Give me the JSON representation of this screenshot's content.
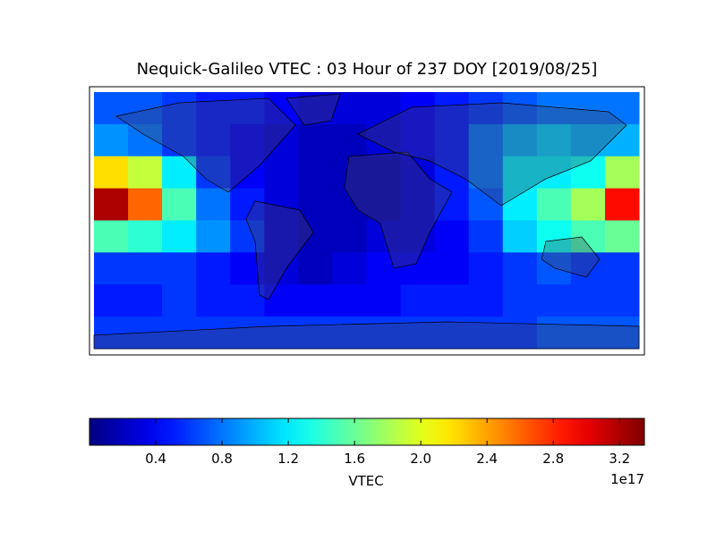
{
  "chart_data": {
    "type": "heatmap",
    "title": "Nequick-Galileo VTEC : 03 Hour of 237 DOY [2019/08/25]",
    "z": [
      [
        0.7,
        0.7,
        0.6,
        0.5,
        0.5,
        0.4,
        0.3,
        0.3,
        0.3,
        0.4,
        0.5,
        0.6,
        0.7,
        0.8,
        0.8,
        0.8
      ],
      [
        0.9,
        0.8,
        0.6,
        0.5,
        0.4,
        0.3,
        0.2,
        0.2,
        0.3,
        0.4,
        0.5,
        0.8,
        1.0,
        1.1,
        1.0,
        1.0
      ],
      [
        2.2,
        1.9,
        1.2,
        0.6,
        0.4,
        0.3,
        0.2,
        0.2,
        0.2,
        0.3,
        0.5,
        0.8,
        1.2,
        1.2,
        1.3,
        1.8
      ],
      [
        3.2,
        2.6,
        1.5,
        0.8,
        0.5,
        0.3,
        0.2,
        0.2,
        0.2,
        0.3,
        0.5,
        0.7,
        1.2,
        1.5,
        1.8,
        2.9
      ],
      [
        1.5,
        1.4,
        1.2,
        0.9,
        0.6,
        0.3,
        0.2,
        0.2,
        0.3,
        0.3,
        0.4,
        0.6,
        1.1,
        1.3,
        1.5,
        1.6
      ],
      [
        0.6,
        0.6,
        0.6,
        0.5,
        0.4,
        0.3,
        0.2,
        0.3,
        0.4,
        0.4,
        0.4,
        0.5,
        0.6,
        0.7,
        0.6,
        0.6
      ],
      [
        0.5,
        0.5,
        0.6,
        0.5,
        0.5,
        0.4,
        0.4,
        0.4,
        0.4,
        0.5,
        0.5,
        0.5,
        0.6,
        0.6,
        0.6,
        0.6
      ],
      [
        0.6,
        0.6,
        0.6,
        0.6,
        0.6,
        0.6,
        0.6,
        0.6,
        0.6,
        0.6,
        0.6,
        0.6,
        0.6,
        0.7,
        0.7,
        0.7
      ]
    ],
    "colormap": "jet",
    "colorbar_lim": [
      0,
      3.35
    ],
    "colorbar_ticks": [
      0.4,
      0.8,
      1.2,
      1.6,
      {
        "value": 2,
        "label": "2.0"
      },
      2.4,
      2.8,
      3.2
    ],
    "colorbar_label": "VTEC",
    "colorbar_offset": "1e17"
  }
}
